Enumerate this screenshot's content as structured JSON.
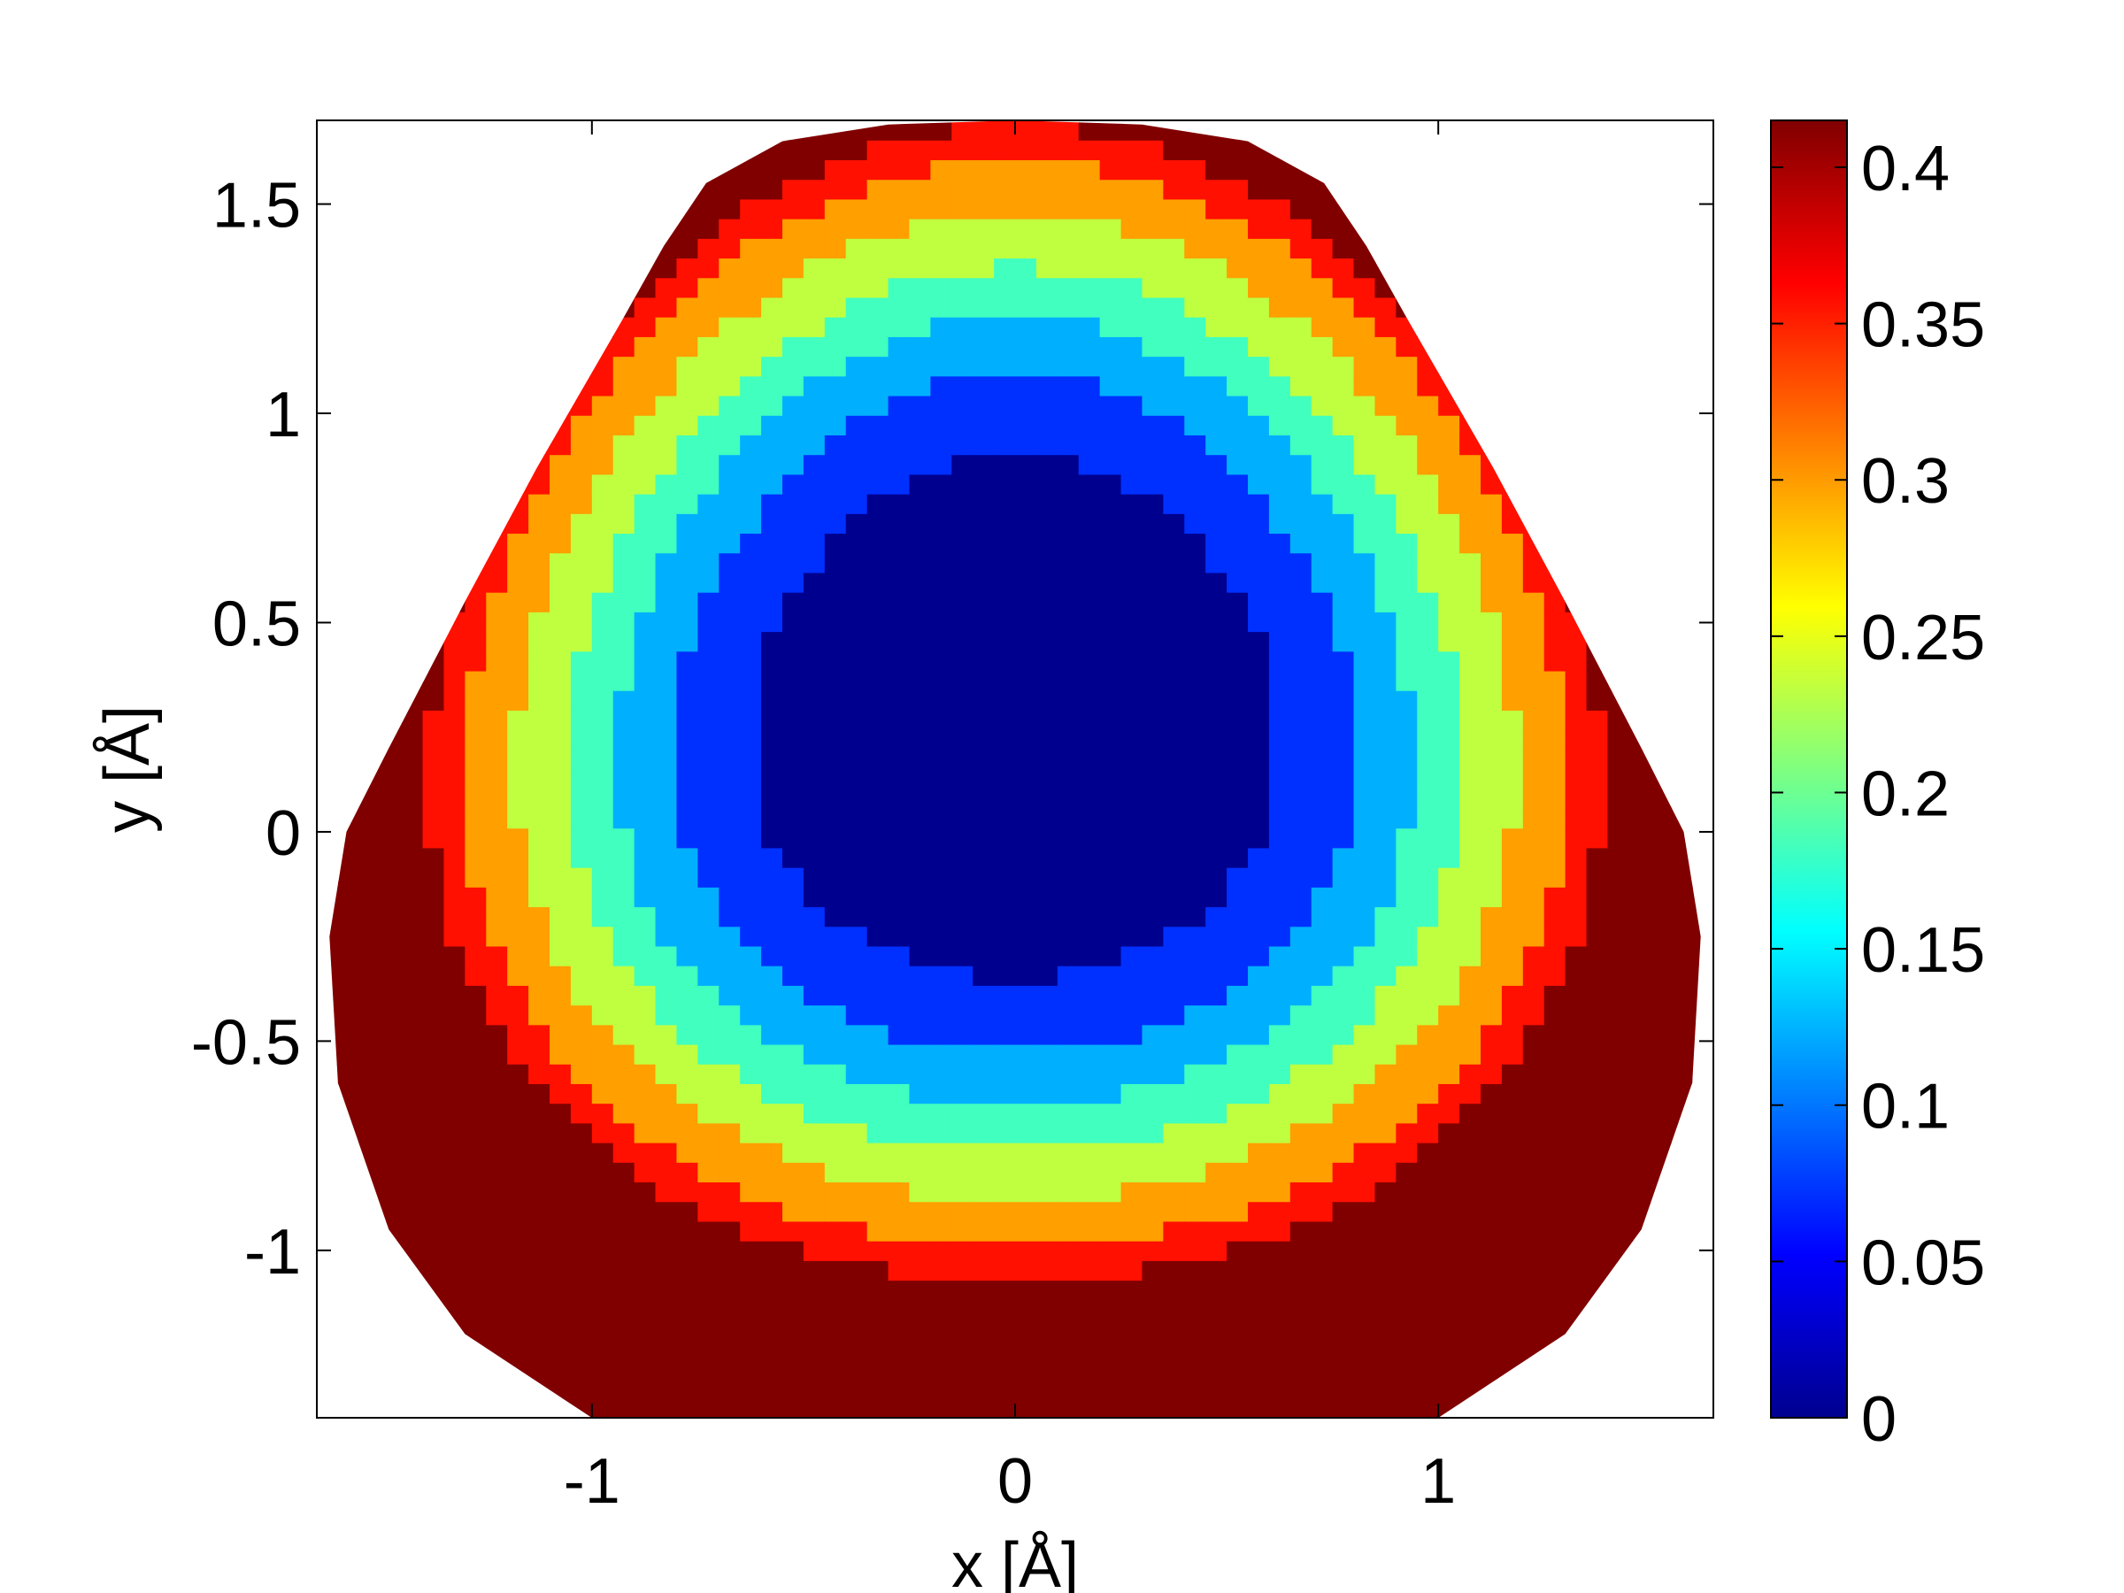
{
  "chart_data": {
    "type": "heatmap",
    "title": "",
    "xlabel": "x [Å]",
    "ylabel": "y [Å]",
    "xlim": [
      -1.65,
      1.65
    ],
    "ylim": [
      -1.4,
      1.7
    ],
    "x_ticks": [
      -1,
      0,
      1
    ],
    "x_tick_labels": [
      "-1",
      "0",
      "1"
    ],
    "y_ticks": [
      -1,
      -0.5,
      0,
      0.5,
      1,
      1.5
    ],
    "y_tick_labels": [
      "-1",
      "-0.5",
      "0",
      "0.5",
      "1",
      "1.5"
    ],
    "grid": false,
    "colormap": "jet",
    "colorbar": {
      "range": [
        0,
        0.415
      ],
      "ticks": [
        0,
        0.05,
        0.1,
        0.15,
        0.2,
        0.25,
        0.3,
        0.35,
        0.4
      ],
      "tick_labels": [
        "0",
        "0.05",
        "0.1",
        "0.15",
        "0.2",
        "0.25",
        "0.3",
        "0.35",
        "0.4"
      ],
      "position": "right"
    },
    "domain_boundary": [
      [
        0.0,
        1.7
      ],
      [
        0.3,
        1.69
      ],
      [
        0.55,
        1.65
      ],
      [
        0.73,
        1.55
      ],
      [
        0.83,
        1.4
      ],
      [
        0.93,
        1.22
      ],
      [
        1.13,
        0.87
      ],
      [
        1.3,
        0.55
      ],
      [
        1.48,
        0.2
      ],
      [
        1.58,
        0.0
      ],
      [
        1.62,
        -0.25
      ],
      [
        1.6,
        -0.6
      ],
      [
        1.48,
        -0.95
      ],
      [
        1.3,
        -1.2
      ],
      [
        1.0,
        -1.4
      ],
      [
        -1.0,
        -1.4
      ],
      [
        -1.3,
        -1.2
      ],
      [
        -1.48,
        -0.95
      ],
      [
        -1.6,
        -0.6
      ],
      [
        -1.62,
        -0.25
      ],
      [
        -1.58,
        0.0
      ],
      [
        -1.48,
        0.2
      ],
      [
        -1.3,
        0.55
      ],
      [
        -1.13,
        0.87
      ],
      [
        -0.93,
        1.22
      ],
      [
        -0.83,
        1.4
      ],
      [
        -0.73,
        1.55
      ],
      [
        -0.55,
        1.65
      ],
      [
        -0.3,
        1.69
      ]
    ],
    "levels": [
      {
        "value": 0.02,
        "color": "#00008f"
      },
      {
        "value": 0.075,
        "color": "#0030ff"
      },
      {
        "value": 0.125,
        "color": "#00b0ff"
      },
      {
        "value": 0.175,
        "color": "#40ffbf"
      },
      {
        "value": 0.225,
        "color": "#c0ff40"
      },
      {
        "value": 0.3,
        "color": "#ff9f00"
      },
      {
        "value": 0.36,
        "color": "#ff1000"
      },
      {
        "value": 0.405,
        "color": "#800000"
      }
    ]
  }
}
